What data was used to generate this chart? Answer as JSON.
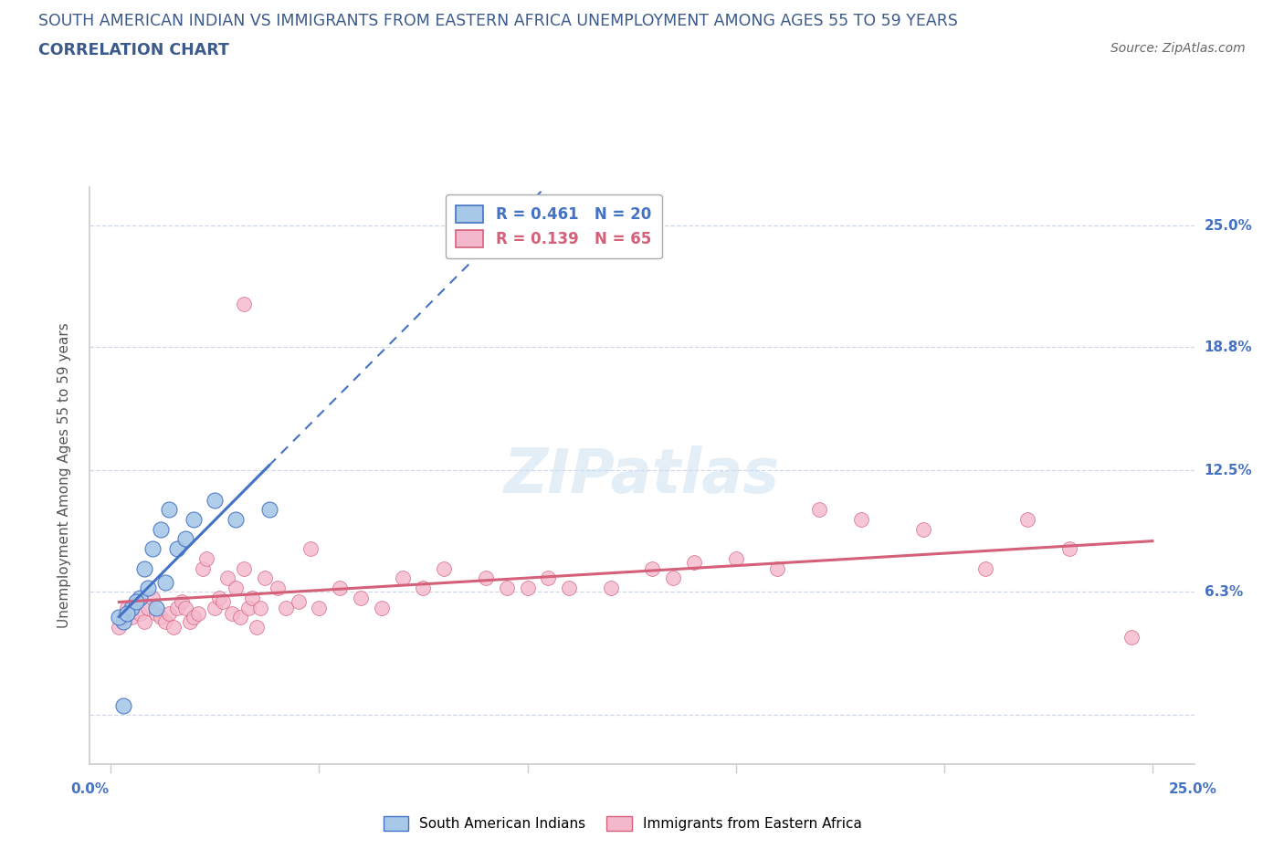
{
  "title_line1": "SOUTH AMERICAN INDIAN VS IMMIGRANTS FROM EASTERN AFRICA UNEMPLOYMENT AMONG AGES 55 TO 59 YEARS",
  "title_line2": "CORRELATION CHART",
  "source": "Source: ZipAtlas.com",
  "ylabel": "Unemployment Among Ages 55 to 59 years",
  "title_color": "#3c5a8a",
  "axis_label_color": "#4472c4",
  "watermark": "ZIPatlas",
  "blue_color": "#a8c8e8",
  "pink_color": "#f4b8cc",
  "blue_line_color": "#4472c4",
  "pink_line_color": "#d4607a",
  "blue_scatter": [
    [
      0.3,
      4.8
    ],
    [
      0.5,
      5.5
    ],
    [
      0.7,
      6.0
    ],
    [
      0.8,
      7.5
    ],
    [
      1.0,
      8.5
    ],
    [
      1.2,
      9.5
    ],
    [
      1.4,
      10.5
    ],
    [
      1.6,
      8.5
    ],
    [
      2.0,
      10.0
    ],
    [
      2.5,
      11.0
    ],
    [
      3.0,
      10.0
    ],
    [
      3.8,
      10.5
    ],
    [
      0.2,
      5.0
    ],
    [
      0.4,
      5.2
    ],
    [
      0.6,
      5.8
    ],
    [
      0.9,
      6.5
    ],
    [
      1.1,
      5.5
    ],
    [
      0.3,
      0.5
    ],
    [
      1.3,
      6.8
    ],
    [
      1.8,
      9.0
    ]
  ],
  "pink_scatter": [
    [
      0.2,
      4.5
    ],
    [
      0.3,
      5.0
    ],
    [
      0.4,
      5.5
    ],
    [
      0.5,
      5.0
    ],
    [
      0.6,
      5.8
    ],
    [
      0.7,
      5.2
    ],
    [
      0.8,
      4.8
    ],
    [
      0.9,
      5.5
    ],
    [
      1.0,
      6.0
    ],
    [
      1.1,
      5.2
    ],
    [
      1.2,
      5.0
    ],
    [
      1.3,
      4.8
    ],
    [
      1.4,
      5.2
    ],
    [
      1.5,
      4.5
    ],
    [
      1.6,
      5.5
    ],
    [
      1.7,
      5.8
    ],
    [
      1.8,
      5.5
    ],
    [
      1.9,
      4.8
    ],
    [
      2.0,
      5.0
    ],
    [
      2.1,
      5.2
    ],
    [
      2.2,
      7.5
    ],
    [
      2.3,
      8.0
    ],
    [
      2.5,
      5.5
    ],
    [
      2.6,
      6.0
    ],
    [
      2.7,
      5.8
    ],
    [
      2.8,
      7.0
    ],
    [
      2.9,
      5.2
    ],
    [
      3.0,
      6.5
    ],
    [
      3.1,
      5.0
    ],
    [
      3.2,
      7.5
    ],
    [
      3.3,
      5.5
    ],
    [
      3.4,
      6.0
    ],
    [
      3.5,
      4.5
    ],
    [
      3.6,
      5.5
    ],
    [
      3.7,
      7.0
    ],
    [
      4.0,
      6.5
    ],
    [
      4.2,
      5.5
    ],
    [
      4.5,
      5.8
    ],
    [
      4.8,
      8.5
    ],
    [
      5.0,
      5.5
    ],
    [
      5.5,
      6.5
    ],
    [
      6.0,
      6.0
    ],
    [
      6.5,
      5.5
    ],
    [
      7.0,
      7.0
    ],
    [
      7.5,
      6.5
    ],
    [
      8.0,
      7.5
    ],
    [
      9.0,
      7.0
    ],
    [
      9.5,
      6.5
    ],
    [
      10.0,
      6.5
    ],
    [
      10.5,
      7.0
    ],
    [
      11.0,
      6.5
    ],
    [
      12.0,
      6.5
    ],
    [
      13.0,
      7.5
    ],
    [
      13.5,
      7.0
    ],
    [
      14.0,
      7.8
    ],
    [
      15.0,
      8.0
    ],
    [
      16.0,
      7.5
    ],
    [
      17.0,
      10.5
    ],
    [
      18.0,
      10.0
    ],
    [
      19.5,
      9.5
    ],
    [
      21.0,
      7.5
    ],
    [
      22.0,
      10.0
    ],
    [
      23.0,
      8.5
    ],
    [
      24.5,
      4.0
    ],
    [
      3.2,
      21.0
    ]
  ],
  "xlim": [
    -0.5,
    26
  ],
  "ylim": [
    -2.5,
    27
  ],
  "yticks": [
    0.0,
    6.3,
    12.5,
    18.8,
    25.0
  ],
  "ytick_labels": [
    "",
    "6.3%",
    "12.5%",
    "18.8%",
    "25.0%"
  ],
  "grid_color": "#d0d8e8",
  "spine_color": "#cccccc"
}
